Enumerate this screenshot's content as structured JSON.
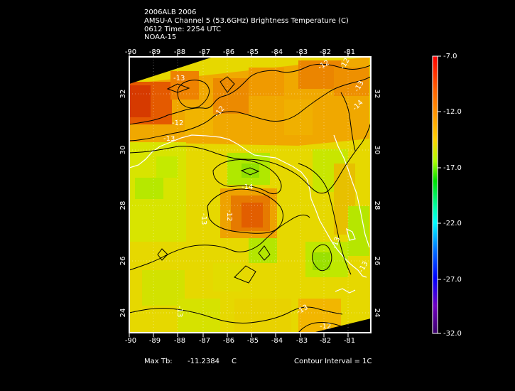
{
  "header": {
    "line1": "2006ALB 2006",
    "line2": "AMSU-A Channel 5 (53.6GHz) Brightness Temperature (C)",
    "line3": "0612 Time: 2254 UTC",
    "line4": "NOAA-15"
  },
  "map": {
    "lon_ticks": [
      "-90",
      "-89",
      "-88",
      "-87",
      "-86",
      "-85",
      "-84",
      "-83",
      "-82",
      "-81"
    ],
    "lat_ticks": [
      "32",
      "30",
      "28",
      "26",
      "24"
    ],
    "contour_labels": [
      "-13",
      "-12",
      "-12",
      "-12",
      "-13",
      "-12",
      "-14",
      "-14",
      "-13",
      "-12",
      "-13",
      "-13",
      "-13",
      "-13",
      "-13",
      "-12"
    ]
  },
  "colorbar": {
    "labels": [
      "-7.0",
      "-12.0",
      "-17.0",
      "-22.0",
      "-27.0",
      "-32.0"
    ],
    "colors": [
      "#ff0000",
      "#ff8c00",
      "#ffd000",
      "#aaff00",
      "#00e000",
      "#00ffff",
      "#0070ff",
      "#0000ff",
      "#7000c0",
      "#3a006a"
    ]
  },
  "footer": {
    "max_tb_label": "Max Tb:",
    "max_tb_value": "-11.2384",
    "max_tb_unit": "C",
    "contour_interval": "Contour Interval = 1C"
  }
}
